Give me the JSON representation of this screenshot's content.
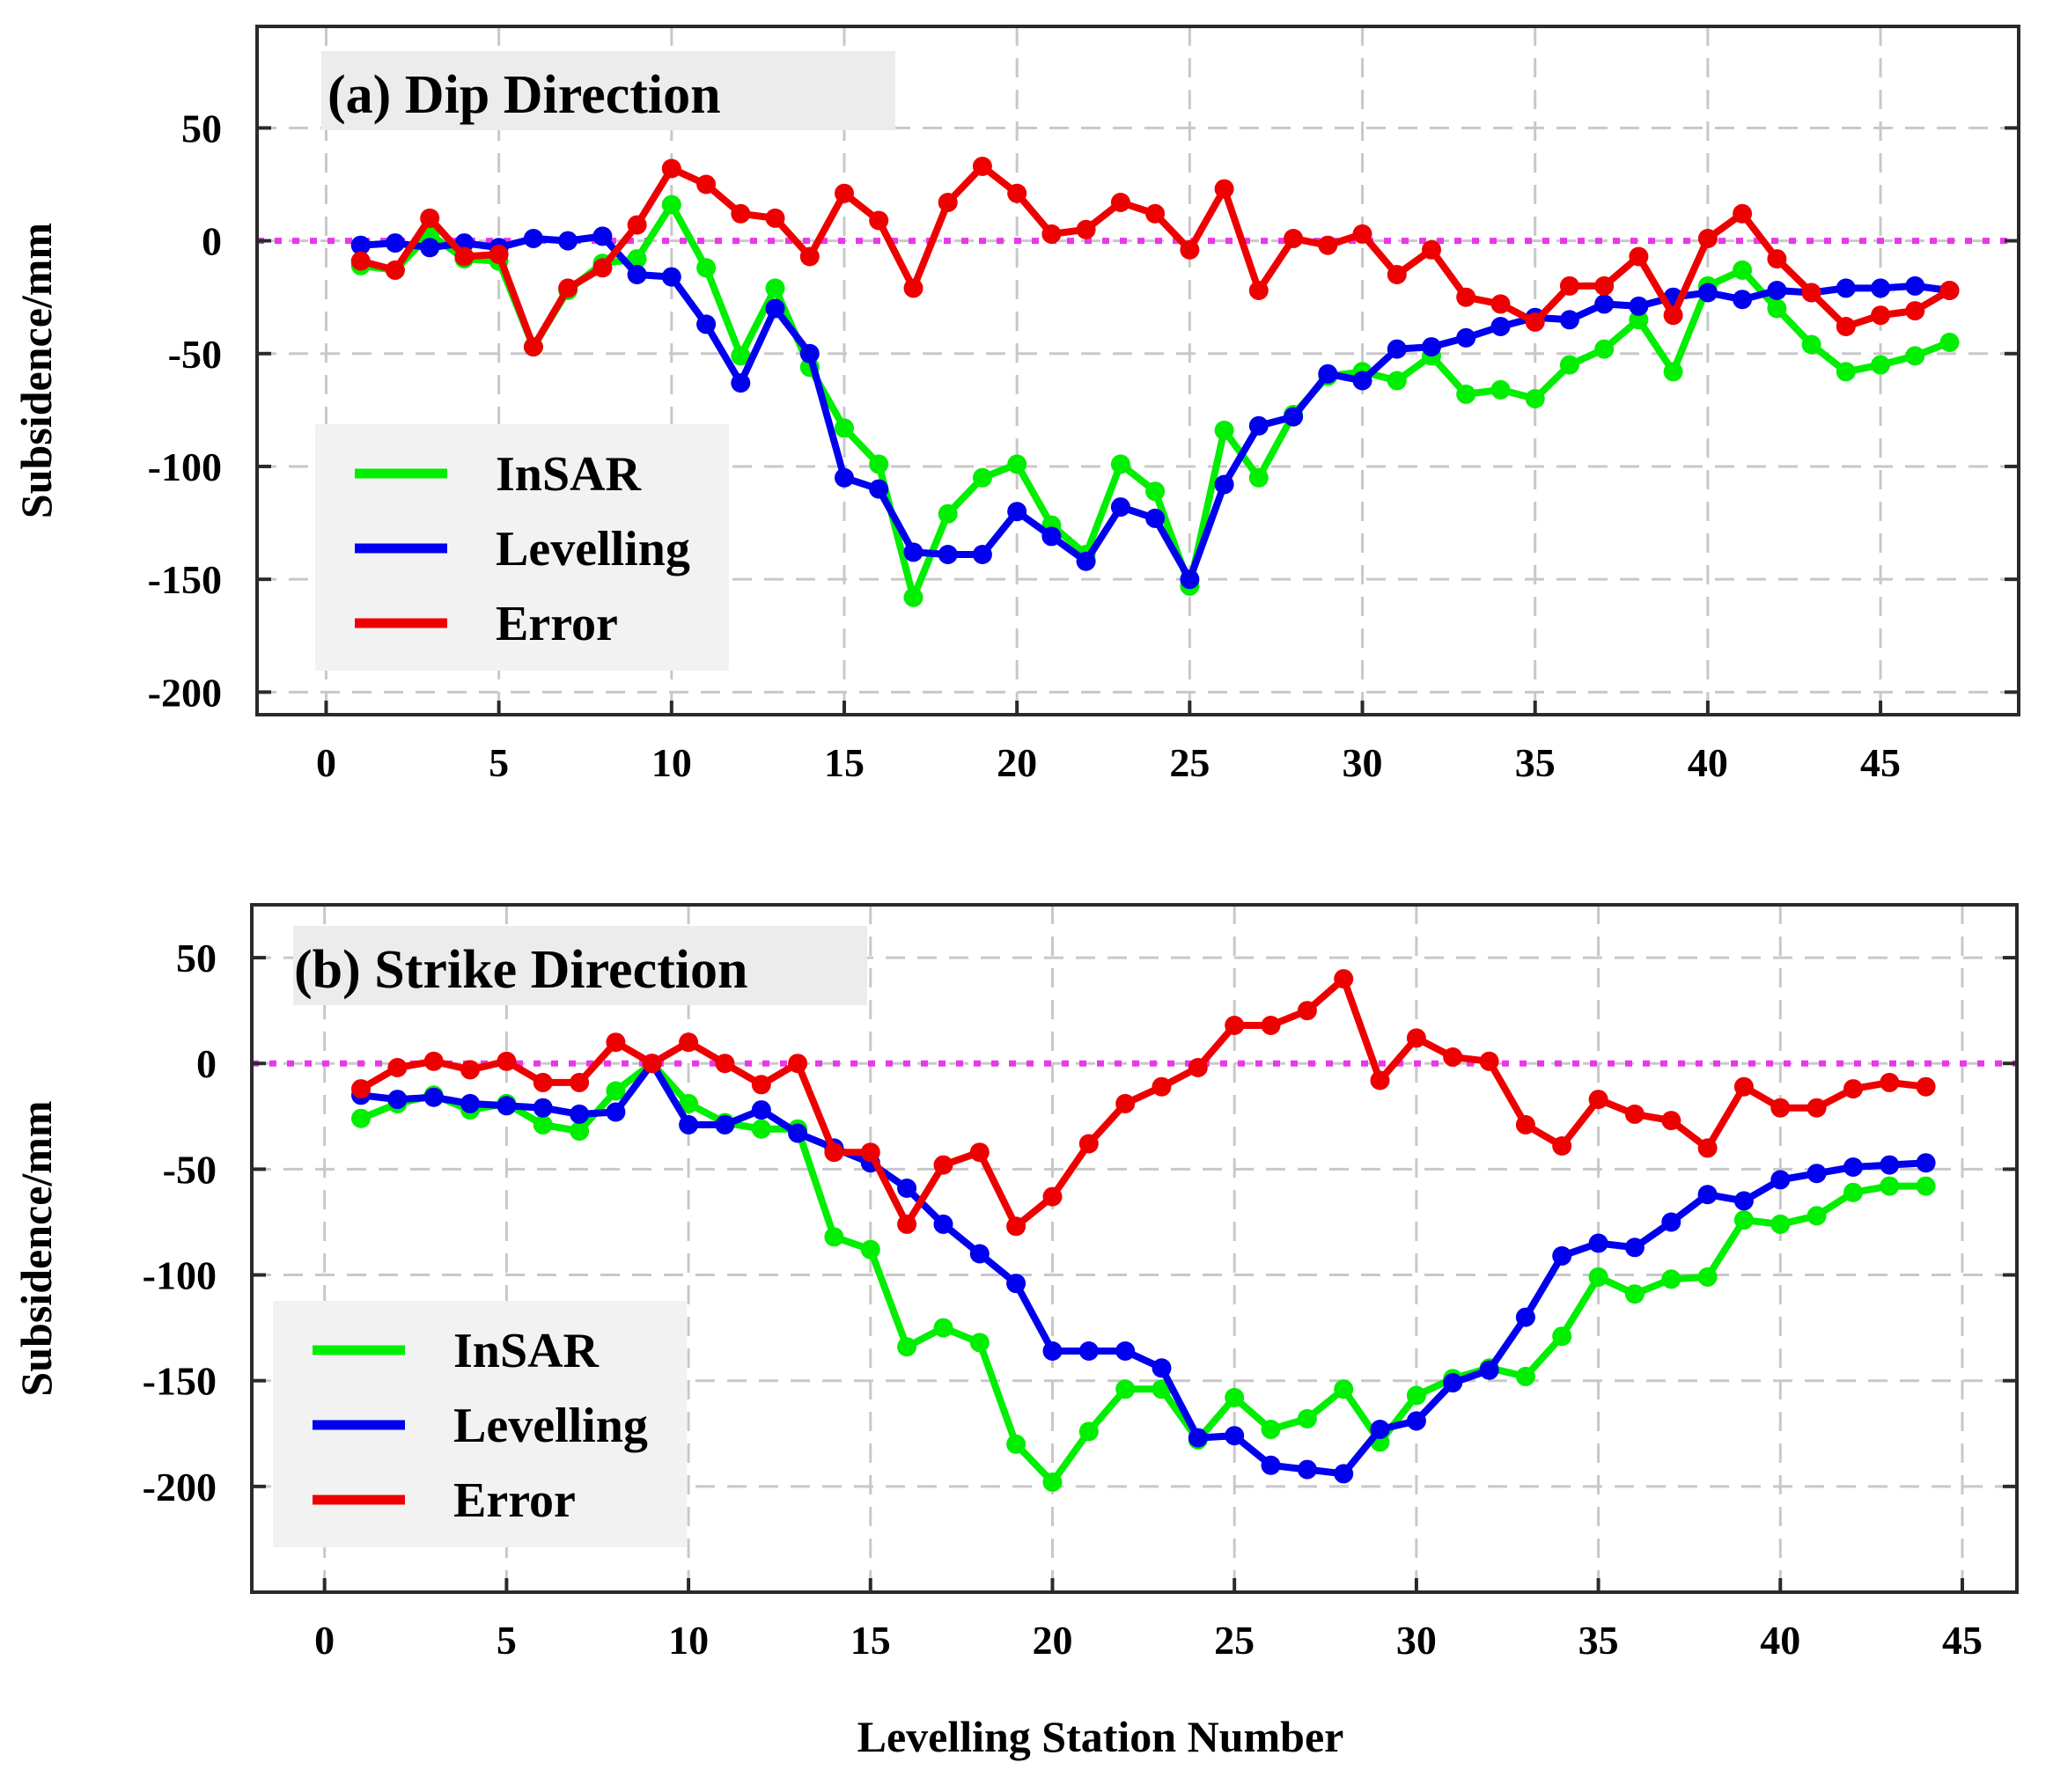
{
  "figure": {
    "xlabel": "Levelling Station Number",
    "colors": {
      "insar": "#00ee00",
      "levelling": "#0000ee",
      "error": "#ee0000",
      "zero": "#e838e8"
    }
  },
  "chart_data": [
    {
      "type": "line",
      "title": "(a) Dip Direction",
      "ylabel": "Subsidence/mm",
      "xlabel": "",
      "xlim": [
        -2,
        49
      ],
      "ylim": [
        -210,
        95
      ],
      "xticks": [
        0,
        5,
        10,
        15,
        20,
        25,
        30,
        35,
        40,
        45
      ],
      "yticks": [
        -200,
        -150,
        -100,
        -50,
        0,
        50
      ],
      "xtick_labels": [
        "0",
        "5",
        "10",
        "15",
        "20",
        "25",
        "30",
        "35",
        "40",
        "45"
      ],
      "ytick_labels": [
        "-200",
        "-150",
        "-100",
        "-50",
        "0",
        "50"
      ],
      "grid": true,
      "legend_position": "lower-left",
      "x": [
        1,
        2,
        3,
        4,
        5,
        6,
        7,
        8,
        9,
        10,
        11,
        12,
        13,
        14,
        15,
        16,
        17,
        18,
        19,
        20,
        21,
        22,
        23,
        24,
        25,
        26,
        27,
        28,
        29,
        30,
        31,
        32,
        33,
        34,
        35,
        36,
        37,
        38,
        39,
        40,
        41,
        42,
        43,
        44,
        45,
        46,
        47
      ],
      "series": [
        {
          "name": "InSAR",
          "color": "#00ee00",
          "values": [
            -11,
            -13,
            3,
            -8,
            -9,
            -47,
            -22,
            -10,
            -8,
            16,
            -12,
            -51,
            -21,
            -56,
            -83,
            -99,
            -158,
            -121,
            -105,
            -99,
            -126,
            -139,
            -99,
            -111,
            -153,
            -84,
            -105,
            -77,
            -60,
            -58,
            -62,
            -51,
            -68,
            -66,
            -70,
            -55,
            -48,
            -35,
            -58,
            -20,
            -13,
            -30,
            -46,
            -58,
            -55,
            -51,
            -45
          ]
        },
        {
          "name": "Levelling",
          "color": "#0000ee",
          "values": [
            -2,
            -1,
            -3,
            -1,
            -3,
            1,
            0,
            2,
            -15,
            -16,
            -37,
            -63,
            -30,
            -50,
            -105,
            -110,
            -138,
            -139,
            -139,
            -120,
            -131,
            -142,
            -118,
            -123,
            -150,
            -108,
            -82,
            -78,
            -59,
            -62,
            -48,
            -47,
            -43,
            -38,
            -34,
            -35,
            -28,
            -29,
            -25,
            -23,
            -26,
            -22,
            -23,
            -21,
            -21,
            -20,
            -22
          ]
        },
        {
          "name": "Error",
          "color": "#ee0000",
          "values": [
            -9,
            -13,
            10,
            -7,
            -6,
            -47,
            -21,
            -12,
            7,
            32,
            25,
            12,
            10,
            -7,
            21,
            9,
            -21,
            17,
            33,
            21,
            3,
            5,
            17,
            12,
            -4,
            23,
            -22,
            1,
            -2,
            3,
            -15,
            -4,
            -25,
            -28,
            -36,
            -20,
            -20,
            -7,
            -33,
            1,
            12,
            -8,
            -23,
            -38,
            -33,
            -31,
            -22
          ]
        }
      ]
    },
    {
      "type": "line",
      "title": "(b) Strike Direction",
      "ylabel": "Subsidence/mm",
      "xlabel": "Levelling Station Number",
      "xlim": [
        -2,
        46.5
      ],
      "ylim": [
        -250,
        75
      ],
      "xticks": [
        0,
        5,
        10,
        15,
        20,
        25,
        30,
        35,
        40,
        45
      ],
      "yticks": [
        -200,
        -150,
        -100,
        -50,
        0,
        50
      ],
      "xtick_labels": [
        "0",
        "5",
        "10",
        "15",
        "20",
        "25",
        "30",
        "35",
        "40",
        "45"
      ],
      "ytick_labels": [
        "-200",
        "-150",
        "-100",
        "-50",
        "0",
        "50"
      ],
      "grid": true,
      "legend_position": "lower-left",
      "x": [
        1,
        2,
        3,
        4,
        5,
        6,
        7,
        8,
        9,
        10,
        11,
        12,
        13,
        14,
        15,
        16,
        17,
        18,
        19,
        20,
        21,
        22,
        23,
        24,
        25,
        26,
        27,
        28,
        29,
        30,
        31,
        32,
        33,
        34,
        35,
        36,
        37,
        38,
        39,
        40,
        41,
        42,
        43,
        44
      ],
      "series": [
        {
          "name": "InSAR",
          "color": "#00ee00",
          "values": [
            -26,
            -19,
            -15,
            -22,
            -19,
            -29,
            -32,
            -13,
            0,
            -19,
            -28,
            -31,
            -31,
            -82,
            -88,
            -134,
            -125,
            -132,
            -180,
            -198,
            -174,
            -154,
            -154,
            -178,
            -158,
            -173,
            -168,
            -154,
            -179,
            -157,
            -149,
            -144,
            -148,
            -129,
            -101,
            -109,
            -102,
            -101,
            -74,
            -76,
            -72,
            -61,
            -58,
            -58
          ]
        },
        {
          "name": "Levelling",
          "color": "#0000ee",
          "values": [
            -15,
            -17,
            -16,
            -19,
            -20,
            -21,
            -24,
            -23,
            0,
            -29,
            -29,
            -22,
            -33,
            -40,
            -47,
            -59,
            -76,
            -90,
            -104,
            -136,
            -136,
            -136,
            -144,
            -177,
            -176,
            -190,
            -192,
            -194,
            -173,
            -169,
            -151,
            -145,
            -120,
            -91,
            -85,
            -87,
            -75,
            -62,
            -65,
            -55,
            -52,
            -49,
            -48,
            -47
          ]
        },
        {
          "name": "Error",
          "color": "#ee0000",
          "values": [
            -12,
            -2,
            1,
            -3,
            1,
            -9,
            -9,
            10,
            0,
            10,
            0,
            -10,
            0,
            -42,
            -42,
            -76,
            -48,
            -42,
            -77,
            -63,
            -38,
            -19,
            -11,
            -2,
            18,
            18,
            25,
            40,
            -8,
            12,
            3,
            1,
            -29,
            -39,
            -17,
            -24,
            -27,
            -40,
            -11,
            -21,
            -21,
            -12,
            -9,
            -11
          ]
        }
      ]
    }
  ]
}
